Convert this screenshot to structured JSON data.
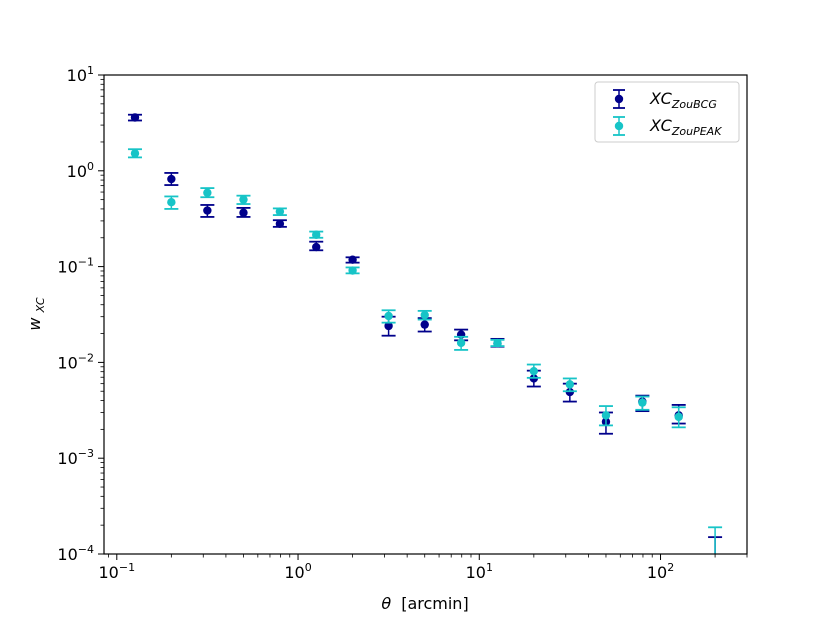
{
  "chart_data": {
    "type": "scatter",
    "x_scale": "log",
    "y_scale": "log",
    "xlim": [
      0.085,
      300
    ],
    "ylim": [
      0.0001,
      10
    ],
    "xlabel_symbol": "θ",
    "xlabel_unit": "[arcmin]",
    "ylabel_main": "w",
    "ylabel_sub": "XC",
    "x_tick_labels": [
      {
        "base": "10",
        "exp": "−1"
      },
      {
        "base": "10",
        "exp": "0"
      },
      {
        "base": "10",
        "exp": "1"
      },
      {
        "base": "10",
        "exp": "2"
      }
    ],
    "y_tick_labels": [
      {
        "base": "10",
        "exp": "−4"
      },
      {
        "base": "10",
        "exp": "−3"
      },
      {
        "base": "10",
        "exp": "−2"
      },
      {
        "base": "10",
        "exp": "−1"
      },
      {
        "base": "10",
        "exp": "0"
      },
      {
        "base": "10",
        "exp": "1"
      }
    ],
    "legend_position": "upper right",
    "grid": false,
    "series": [
      {
        "name": "XC",
        "name_sub": "ZouBCG",
        "color": "#00008b",
        "points": [
          {
            "x": 0.126,
            "y": 3.6,
            "lo": 3.35,
            "hi": 3.85
          },
          {
            "x": 0.2,
            "y": 0.82,
            "lo": 0.71,
            "hi": 0.95
          },
          {
            "x": 0.316,
            "y": 0.385,
            "lo": 0.33,
            "hi": 0.44
          },
          {
            "x": 0.5,
            "y": 0.365,
            "lo": 0.33,
            "hi": 0.41
          },
          {
            "x": 0.794,
            "y": 0.28,
            "lo": 0.26,
            "hi": 0.305
          },
          {
            "x": 1.26,
            "y": 0.16,
            "lo": 0.148,
            "hi": 0.182
          },
          {
            "x": 2.0,
            "y": 0.118,
            "lo": 0.11,
            "hi": 0.125
          },
          {
            "x": 3.16,
            "y": 0.024,
            "lo": 0.019,
            "hi": 0.03
          },
          {
            "x": 5.0,
            "y": 0.0248,
            "lo": 0.021,
            "hi": 0.029
          },
          {
            "x": 7.94,
            "y": 0.0195,
            "lo": 0.017,
            "hi": 0.022
          },
          {
            "x": 12.6,
            "y": 0.0158,
            "lo": 0.0146,
            "hi": 0.0176
          },
          {
            "x": 20.0,
            "y": 0.0068,
            "lo": 0.0056,
            "hi": 0.0082
          },
          {
            "x": 31.6,
            "y": 0.0049,
            "lo": 0.0039,
            "hi": 0.006
          },
          {
            "x": 50.0,
            "y": 0.0024,
            "lo": 0.0018,
            "hi": 0.003
          },
          {
            "x": 79.4,
            "y": 0.0039,
            "lo": 0.0031,
            "hi": 0.0045
          },
          {
            "x": 126.0,
            "y": 0.0028,
            "lo": 0.0023,
            "hi": 0.0036
          },
          {
            "x": 200.0,
            "y": null,
            "lo": 0.0001,
            "hi": 0.00015
          }
        ]
      },
      {
        "name": "XC",
        "name_sub": "ZouPEAK",
        "color": "#17c4c7",
        "points": [
          {
            "x": 0.126,
            "y": 1.52,
            "lo": 1.38,
            "hi": 1.68
          },
          {
            "x": 0.2,
            "y": 0.47,
            "lo": 0.4,
            "hi": 0.54
          },
          {
            "x": 0.316,
            "y": 0.59,
            "lo": 0.53,
            "hi": 0.66
          },
          {
            "x": 0.5,
            "y": 0.5,
            "lo": 0.45,
            "hi": 0.55
          },
          {
            "x": 0.794,
            "y": 0.375,
            "lo": 0.345,
            "hi": 0.405
          },
          {
            "x": 1.26,
            "y": 0.215,
            "lo": 0.2,
            "hi": 0.232
          },
          {
            "x": 2.0,
            "y": 0.091,
            "lo": 0.085,
            "hi": 0.098
          },
          {
            "x": 3.16,
            "y": 0.0305,
            "lo": 0.026,
            "hi": 0.035
          },
          {
            "x": 5.0,
            "y": 0.0312,
            "lo": 0.028,
            "hi": 0.0345
          },
          {
            "x": 7.94,
            "y": 0.016,
            "lo": 0.0135,
            "hi": 0.0185
          },
          {
            "x": 12.6,
            "y": 0.0159,
            "lo": 0.0148,
            "hi": 0.0172
          },
          {
            "x": 20.0,
            "y": 0.0081,
            "lo": 0.0069,
            "hi": 0.0095
          },
          {
            "x": 31.6,
            "y": 0.0059,
            "lo": 0.005,
            "hi": 0.0068
          },
          {
            "x": 50.0,
            "y": 0.0028,
            "lo": 0.0022,
            "hi": 0.0035
          },
          {
            "x": 79.4,
            "y": 0.0038,
            "lo": 0.0032,
            "hi": 0.0044
          },
          {
            "x": 126.0,
            "y": 0.0027,
            "lo": 0.0021,
            "hi": 0.0034
          },
          {
            "x": 200.0,
            "y": null,
            "lo": 0.0001,
            "hi": 0.00019
          }
        ]
      }
    ]
  }
}
